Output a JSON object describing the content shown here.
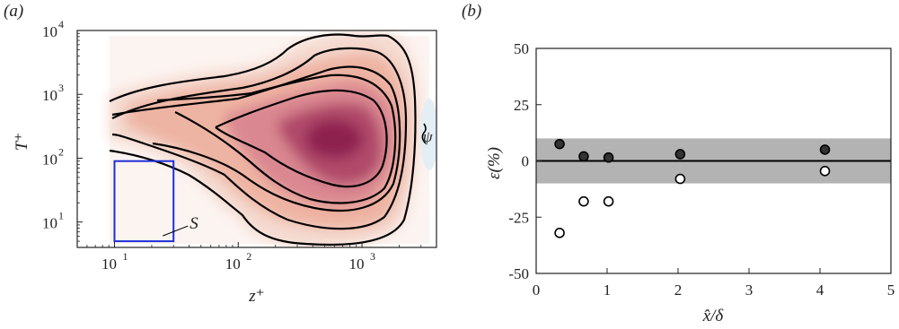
{
  "chart_data": [
    {
      "type": "heatmap",
      "panel_label": "(a)",
      "xlabel": "z⁺",
      "ylabel": "T⁺",
      "xscale": "log",
      "yscale": "log",
      "xlim": [
        5,
        4000
      ],
      "ylim": [
        4,
        10000
      ],
      "x_ticks": [
        {
          "value": 10,
          "base": "10",
          "exp": "1"
        },
        {
          "value": 100,
          "base": "10",
          "exp": "2"
        },
        {
          "value": 1000,
          "base": "10",
          "exp": "3"
        }
      ],
      "y_ticks": [
        {
          "value": 10,
          "base": "10",
          "exp": "1"
        },
        {
          "value": 100,
          "base": "10",
          "exp": "2"
        },
        {
          "value": 1000,
          "base": "10",
          "exp": "3"
        },
        {
          "value": 10000,
          "base": "10",
          "exp": "4"
        }
      ],
      "peak": {
        "z": 600,
        "T": 500
      },
      "region_S": {
        "label": "S",
        "z_range": [
          10,
          30
        ],
        "T_range": [
          5,
          90
        ],
        "color": "#1f2fd6"
      },
      "annotation_right": "ψ",
      "colormap": [
        "#f6e3dc",
        "#eda99a",
        "#c25a73",
        "#9a2a55"
      ],
      "contour_color": "#000000"
    },
    {
      "type": "scatter",
      "panel_label": "(b)",
      "xlabel": "x̂/δ",
      "ylabel": "ε(%)",
      "xlim": [
        0,
        5
      ],
      "ylim": [
        -50,
        50
      ],
      "x_ticks": [
        0,
        1,
        2,
        3,
        4,
        5
      ],
      "y_ticks": [
        50,
        25,
        0,
        -25,
        -50
      ],
      "y_tick_labels": [
        "50",
        "25",
        "0",
        "-25",
        "-50"
      ],
      "band": {
        "ymin": -10,
        "ymax": 10,
        "color": "#b3b3b3"
      },
      "reference_line": 0,
      "series": [
        {
          "marker": "filled",
          "x": [
            0.33,
            0.67,
            1.02,
            2.03,
            4.07
          ],
          "y": [
            7.5,
            2,
            1.5,
            3,
            5
          ]
        },
        {
          "marker": "open",
          "x": [
            0.33,
            0.67,
            1.02,
            2.03,
            4.07
          ],
          "y": [
            -32,
            -18,
            -18,
            -8,
            -4.5
          ]
        }
      ]
    }
  ]
}
